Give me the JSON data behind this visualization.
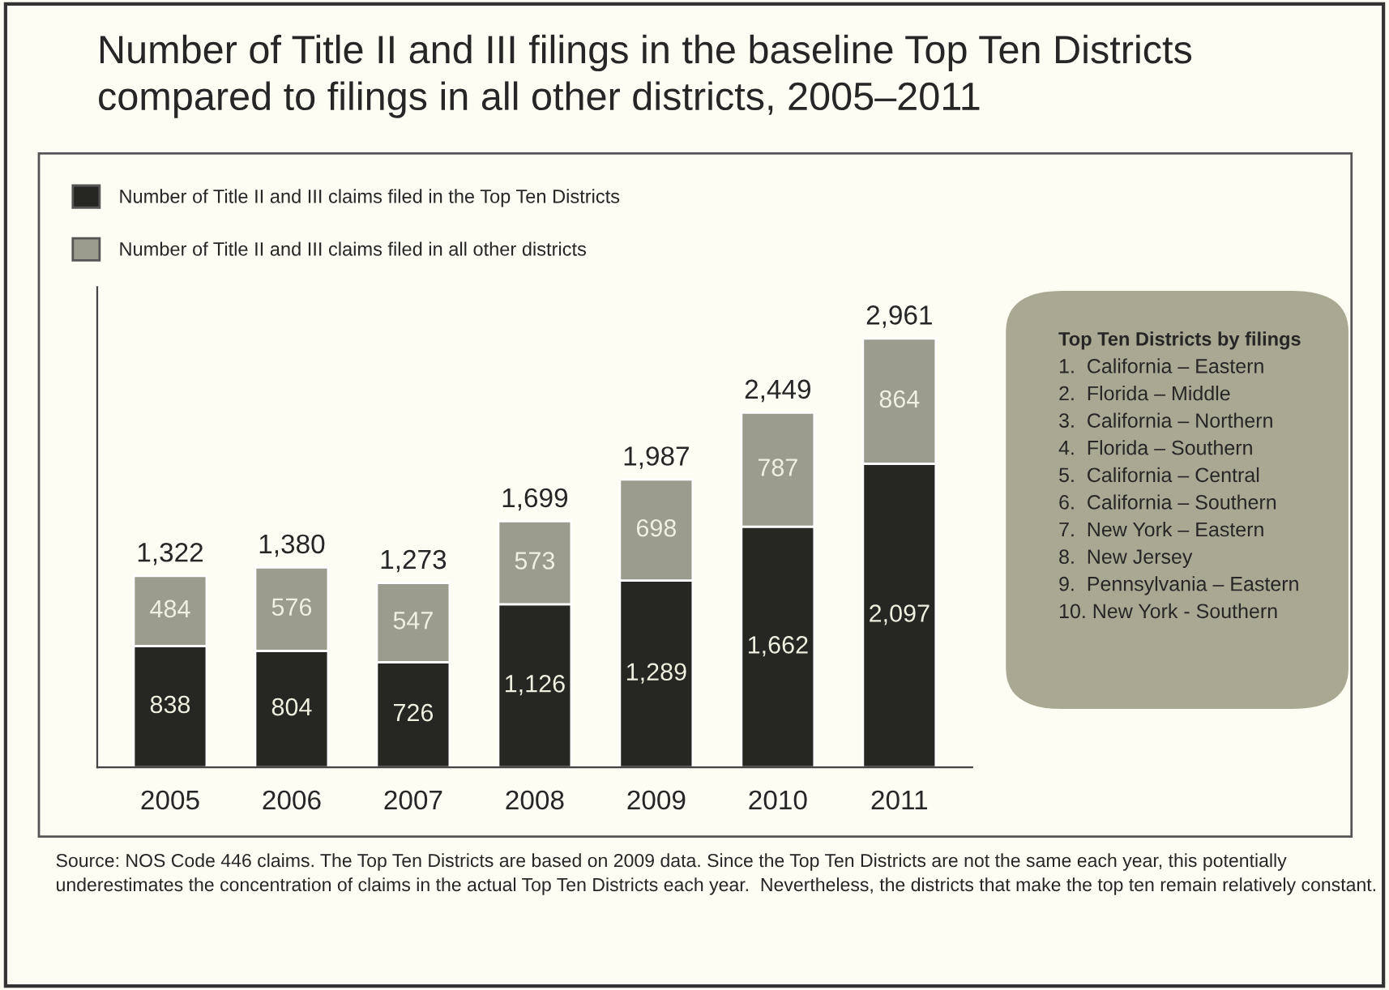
{
  "chart_data": {
    "type": "bar",
    "stacked": true,
    "title": "Number of Title II and III filings in the baseline Top Ten Districts\ncompared to filings in all other districts, 2005–2011",
    "categories": [
      "2005",
      "2006",
      "2007",
      "2008",
      "2009",
      "2010",
      "2011"
    ],
    "series": [
      {
        "name": "Number of Title II and III claims filed in the Top Ten Districts",
        "color": "#262622",
        "values": [
          838,
          804,
          726,
          1126,
          1289,
          1662,
          2097
        ],
        "value_labels": [
          "838",
          "804",
          "726",
          "1,126",
          "1,289",
          "1,662",
          "2,097"
        ]
      },
      {
        "name": "Number of Title II and III claims filed in all other districts",
        "color": "#9c9c8e",
        "values": [
          484,
          576,
          547,
          573,
          698,
          787,
          864
        ],
        "value_labels": [
          "484",
          "576",
          "547",
          "573",
          "698",
          "787",
          "864"
        ]
      }
    ],
    "totals": [
      "1,322",
      "1,380",
      "1,273",
      "1,699",
      "1,987",
      "2,449",
      "2,961"
    ],
    "legend": "top left",
    "annotations": [
      "Top Ten Districts by filings",
      "1.  California – Eastern",
      "2.  Florida – Middle",
      "3.  California – Northern",
      "4.  Florida – Southern",
      "5.  California – Central",
      "6.  California – Southern",
      "7.  New York – Eastern",
      "8.  New Jersey",
      "9.  Pennsylvania – Eastern",
      "10. New York - Southern",
      "Source: NOS Code 446 claims. The Top Ten Districts are based on 2009 data. Since the Top Ten Districts are not the same each year, this potentially underestimates the concentration of claims in the actual Top Ten Districts each year.  Nevertheless, the districts that make the top ten remain relatively constant."
    ]
  }
}
